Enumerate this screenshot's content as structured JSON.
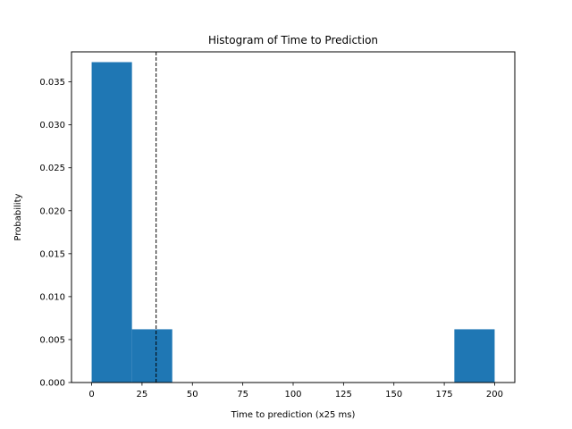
{
  "chart_data": {
    "type": "bar",
    "title": "Histogram of Time to Prediction",
    "xlabel": "Time to prediction (x25 ms)",
    "ylabel": "Probability",
    "xlim": [
      -10,
      210
    ],
    "ylim": [
      0,
      0.0385
    ],
    "xticks": [
      0,
      25,
      50,
      75,
      100,
      125,
      150,
      175,
      200
    ],
    "xtick_labels": [
      "0",
      "25",
      "50",
      "75",
      "100",
      "125",
      "150",
      "175",
      "200"
    ],
    "yticks": [
      0.0,
      0.005,
      0.01,
      0.015,
      0.02,
      0.025,
      0.03,
      0.035
    ],
    "ytick_labels": [
      "0.000",
      "0.005",
      "0.010",
      "0.015",
      "0.020",
      "0.025",
      "0.030",
      "0.035"
    ],
    "bins": [
      {
        "start": 0,
        "end": 20,
        "value": 0.0373
      },
      {
        "start": 20,
        "end": 40,
        "value": 0.0062
      },
      {
        "start": 40,
        "end": 60,
        "value": 0
      },
      {
        "start": 60,
        "end": 80,
        "value": 0
      },
      {
        "start": 80,
        "end": 100,
        "value": 0
      },
      {
        "start": 100,
        "end": 120,
        "value": 0
      },
      {
        "start": 120,
        "end": 140,
        "value": 0
      },
      {
        "start": 140,
        "end": 160,
        "value": 0
      },
      {
        "start": 160,
        "end": 180,
        "value": 0
      },
      {
        "start": 180,
        "end": 200,
        "value": 0.0062
      }
    ],
    "reference_line": {
      "x": 32,
      "style": "dashed",
      "color": "#000000"
    },
    "bar_color": "#1f77b4",
    "grid": false
  }
}
